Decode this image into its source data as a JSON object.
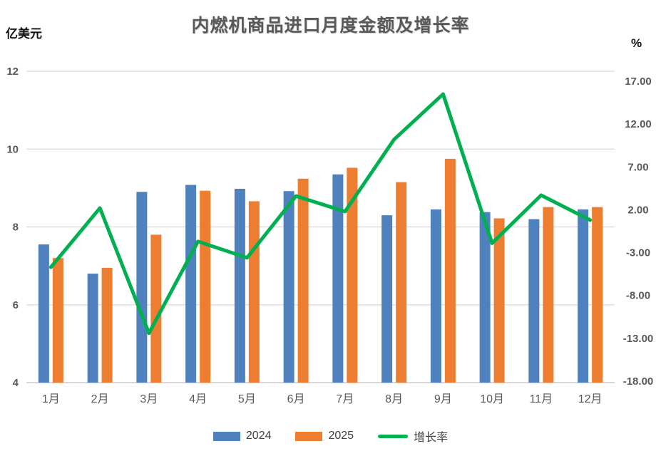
{
  "title": "内燃机商品进口月度金额及增长率",
  "left_axis_unit": "亿美元",
  "right_axis_unit": "%",
  "legend": [
    {
      "label": "2024",
      "color": "#4E81BD",
      "type": "bar"
    },
    {
      "label": "2025",
      "color": "#ED7D31",
      "type": "bar"
    },
    {
      "label": "增长率",
      "color": "#00B050",
      "type": "line"
    }
  ],
  "colors": {
    "bar_2024": "#4E81BD",
    "bar_2025": "#ED7D31",
    "growth_line": "#00B050",
    "gridline": "#D9D9D9",
    "axis_line": "#BFBFBF",
    "tick_text": "#595959",
    "title_text": "#595959"
  },
  "chart_data": {
    "type": "bar",
    "subtype": "bar+line-combo",
    "title": "内燃机商品进口月度金额及增长率",
    "categories": [
      "1月",
      "2月",
      "3月",
      "4月",
      "5月",
      "6月",
      "7月",
      "8月",
      "9月",
      "10月",
      "11月",
      "12月"
    ],
    "series": [
      {
        "name": "2024",
        "type": "bar",
        "axis": "left",
        "color": "#4E81BD",
        "values": [
          7.55,
          6.8,
          8.9,
          9.08,
          8.98,
          8.92,
          9.35,
          8.3,
          8.45,
          8.38,
          8.2,
          8.45
        ]
      },
      {
        "name": "2025",
        "type": "bar",
        "axis": "left",
        "color": "#ED7D31",
        "values": [
          7.2,
          6.95,
          7.8,
          8.93,
          8.66,
          9.24,
          9.52,
          9.15,
          9.75,
          8.22,
          8.51,
          8.51
        ]
      },
      {
        "name": "增长率",
        "type": "line",
        "axis": "right",
        "color": "#00B050",
        "values": [
          -4.7,
          2.2,
          -12.4,
          -1.7,
          -3.6,
          3.6,
          1.8,
          10.2,
          15.5,
          -1.9,
          3.7,
          0.8
        ]
      }
    ],
    "left_axis": {
      "label": "亿美元",
      "min": 4,
      "max": 12,
      "ticks": [
        12,
        10,
        8,
        6,
        4
      ],
      "tick_labels": [
        "12",
        "10",
        "8",
        "6",
        "4"
      ]
    },
    "right_axis": {
      "label": "%",
      "min": -18,
      "max": 17,
      "ticks": [
        17,
        12,
        7,
        2,
        -3,
        -8,
        -13,
        -18
      ],
      "tick_labels": [
        "17.00",
        "12.00",
        "7.00",
        "2.00",
        "-3.00",
        "-8.00",
        "-13.00",
        "-18.00"
      ]
    },
    "grid": true,
    "legend_position": "bottom",
    "legend_entries": [
      "2024",
      "2025",
      "增长率"
    ]
  }
}
